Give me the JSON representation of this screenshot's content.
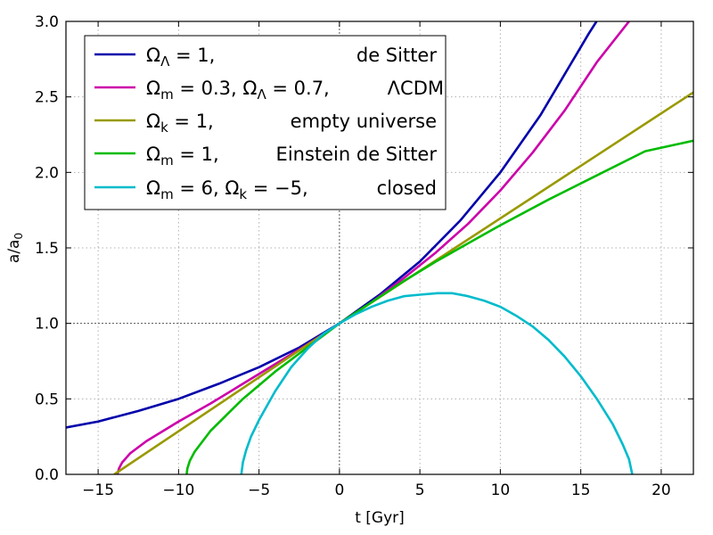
{
  "chart_data": {
    "type": "line",
    "xlabel": "t [Gyr]",
    "ylabel": "a/a",
    "ylabel_sub": "0",
    "xlim": [
      -17,
      22
    ],
    "ylim": [
      0,
      3
    ],
    "xticks": [
      -15,
      -10,
      -5,
      0,
      5,
      10,
      15,
      20
    ],
    "yticks": [
      0.0,
      0.5,
      1.0,
      1.5,
      2.0,
      2.5,
      3.0
    ],
    "xtick_labels": [
      "−15",
      "−10",
      "−5",
      "0",
      "5",
      "10",
      "15",
      "20"
    ],
    "ytick_labels": [
      "0.0",
      "0.5",
      "1.0",
      "1.5",
      "2.0",
      "2.5",
      "3.0"
    ],
    "grid": true,
    "reference_lines": {
      "x": 0,
      "y": 1.0
    },
    "legend_position": "top-left",
    "series": [
      {
        "color": "#0000aa",
        "legend": {
          "math": [
            {
              "t": "Ω"
            },
            {
              "t": "Λ",
              "sub": true
            },
            {
              "t": " = 1,"
            }
          ],
          "desc": "de Sitter"
        },
        "points": [
          [
            -17,
            0.31
          ],
          [
            -15,
            0.35
          ],
          [
            -12.5,
            0.42
          ],
          [
            -10,
            0.5
          ],
          [
            -7.5,
            0.6
          ],
          [
            -5,
            0.71
          ],
          [
            -2.5,
            0.84
          ],
          [
            0,
            1.0
          ],
          [
            2.5,
            1.19
          ],
          [
            5,
            1.41
          ],
          [
            7.5,
            1.68
          ],
          [
            10,
            2.0
          ],
          [
            12.5,
            2.38
          ],
          [
            15,
            2.83
          ],
          [
            15.5,
            2.92
          ],
          [
            15.98,
            3.0
          ]
        ]
      },
      {
        "color": "#cc00aa",
        "legend": {
          "math": [
            {
              "t": "Ω"
            },
            {
              "t": "m",
              "sub": true
            },
            {
              "t": " = 0.3, "
            },
            {
              "t": "Ω"
            },
            {
              "t": "Λ",
              "sub": true
            },
            {
              "t": " = 0.7,"
            }
          ],
          "desc": "ΛCDM"
        },
        "points": [
          [
            -13.8,
            0.0
          ],
          [
            -13.7,
            0.04
          ],
          [
            -13.5,
            0.08
          ],
          [
            -13,
            0.14
          ],
          [
            -12,
            0.22
          ],
          [
            -10,
            0.35
          ],
          [
            -8,
            0.47
          ],
          [
            -6,
            0.6
          ],
          [
            -4,
            0.73
          ],
          [
            -2,
            0.86
          ],
          [
            0,
            1.0
          ],
          [
            2,
            1.14
          ],
          [
            4,
            1.3
          ],
          [
            6,
            1.47
          ],
          [
            8,
            1.66
          ],
          [
            10,
            1.88
          ],
          [
            12,
            2.13
          ],
          [
            14,
            2.41
          ],
          [
            16,
            2.73
          ],
          [
            18,
            3.0
          ]
        ]
      },
      {
        "color": "#999900",
        "legend": {
          "math": [
            {
              "t": "Ω"
            },
            {
              "t": "k",
              "sub": true
            },
            {
              "t": " = 1,"
            }
          ],
          "desc": "empty universe"
        },
        "points": [
          [
            -14,
            0.0
          ],
          [
            0,
            1.0
          ],
          [
            22,
            2.53
          ]
        ]
      },
      {
        "color": "#00bb00",
        "legend": {
          "math": [
            {
              "t": "Ω"
            },
            {
              "t": "m",
              "sub": true
            },
            {
              "t": " = 1,"
            }
          ],
          "desc": "Einstein de Sitter"
        },
        "points": [
          [
            -9.5,
            0.0
          ],
          [
            -9.45,
            0.04
          ],
          [
            -9.3,
            0.09
          ],
          [
            -9,
            0.15
          ],
          [
            -8,
            0.29
          ],
          [
            -6,
            0.5
          ],
          [
            -4,
            0.68
          ],
          [
            -2,
            0.84
          ],
          [
            0,
            1.0
          ],
          [
            2,
            1.14
          ],
          [
            4,
            1.28
          ],
          [
            6,
            1.41
          ],
          [
            8,
            1.53
          ],
          [
            10,
            1.65
          ],
          [
            13,
            1.82
          ],
          [
            16,
            1.98
          ],
          [
            19,
            2.14
          ],
          [
            22,
            2.21
          ]
        ]
      },
      {
        "color": "#00bbcc",
        "legend": {
          "math": [
            {
              "t": "Ω"
            },
            {
              "t": "m",
              "sub": true
            },
            {
              "t": " = 6, "
            },
            {
              "t": "Ω"
            },
            {
              "t": "k",
              "sub": true
            },
            {
              "t": " = −5,"
            }
          ],
          "desc": "closed"
        },
        "points": [
          [
            -6.1,
            0.0
          ],
          [
            -6.0,
            0.08
          ],
          [
            -5.8,
            0.16
          ],
          [
            -5.5,
            0.25
          ],
          [
            -5,
            0.36
          ],
          [
            -4,
            0.55
          ],
          [
            -3,
            0.71
          ],
          [
            -2,
            0.83
          ],
          [
            -1,
            0.93
          ],
          [
            0,
            1.0
          ],
          [
            1,
            1.06
          ],
          [
            2,
            1.11
          ],
          [
            3,
            1.15
          ],
          [
            4,
            1.18
          ],
          [
            5,
            1.19
          ],
          [
            6.1,
            1.2
          ],
          [
            7,
            1.2
          ],
          [
            8,
            1.18
          ],
          [
            9,
            1.15
          ],
          [
            10,
            1.11
          ],
          [
            11,
            1.05
          ],
          [
            12,
            0.98
          ],
          [
            13,
            0.89
          ],
          [
            14,
            0.78
          ],
          [
            15,
            0.65
          ],
          [
            16,
            0.5
          ],
          [
            17,
            0.33
          ],
          [
            17.6,
            0.2
          ],
          [
            18,
            0.1
          ],
          [
            18.2,
            0.0
          ]
        ]
      }
    ]
  }
}
